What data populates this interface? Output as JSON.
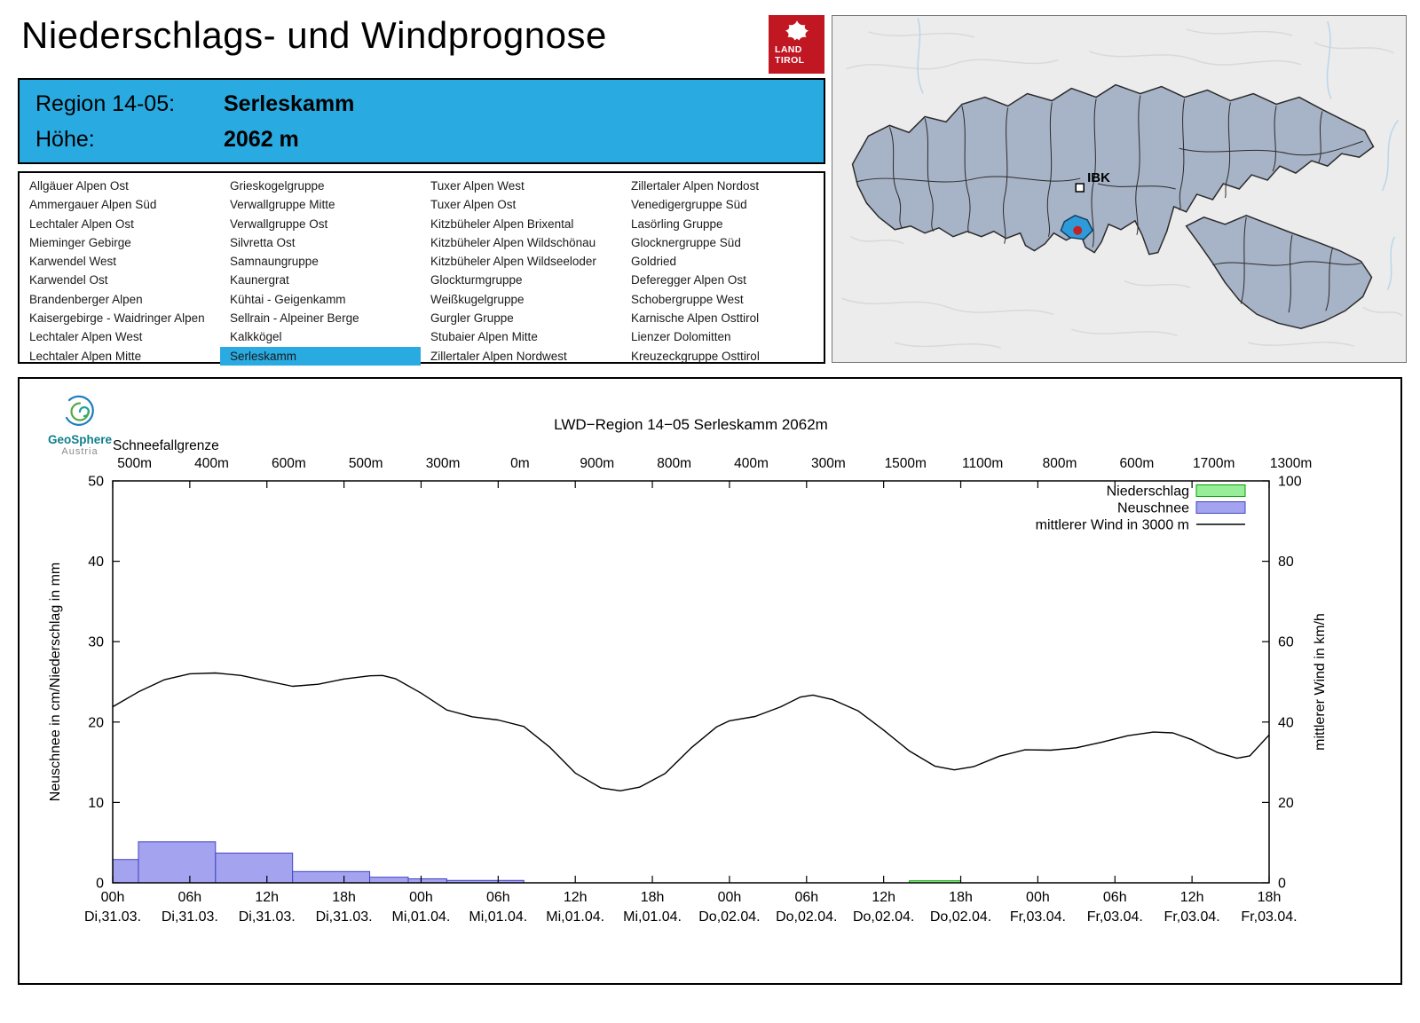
{
  "page": {
    "title": "Niederschlags- und Windprognose"
  },
  "logo": {
    "line1": "LAND",
    "line2": "TIROL"
  },
  "map": {
    "ibk_label": "IBK"
  },
  "region_info": {
    "region_label": "Region 14-05:",
    "region_value": "Serleskamm",
    "elevation_label": "Höhe:",
    "elevation_value": "2062 m"
  },
  "region_list": {
    "selected": "Serleskamm",
    "columns": [
      [
        "Allgäuer Alpen Ost",
        "Ammergauer Alpen Süd",
        "Lechtaler Alpen Ost",
        "Mieminger Gebirge",
        "Karwendel West",
        "Karwendel Ost",
        "Brandenberger Alpen",
        "Kaisergebirge - Waidringer Alpen",
        "Lechtaler Alpen West",
        "Lechtaler Alpen Mitte"
      ],
      [
        "Grieskogelgruppe",
        "Verwallgruppe Mitte",
        "Verwallgruppe Ost",
        "Silvretta Ost",
        "Samnaungruppe",
        "Kaunergrat",
        "Kühtai - Geigenkamm",
        "Sellrain - Alpeiner Berge",
        "Kalkkögel",
        "Serleskamm"
      ],
      [
        "Tuxer Alpen West",
        "Tuxer Alpen Ost",
        "Kitzbüheler Alpen Brixental",
        "Kitzbüheler Alpen Wildschönau",
        "Kitzbüheler Alpen Wildseeloder",
        "Glockturmgruppe",
        "Weißkugelgruppe",
        "Gurgler Gruppe",
        "Stubaier Alpen Mitte",
        "Zillertaler Alpen Nordwest"
      ],
      [
        "Zillertaler Alpen Nordost",
        "Venedigergruppe Süd",
        "Lasörling Gruppe",
        "Glocknergruppe Süd",
        "Goldried",
        "Deferegger Alpen Ost",
        "Schobergruppe West",
        "Karnische Alpen Osttirol",
        "Lienzer Dolomitten",
        "Kreuzeckgruppe Osttirol"
      ]
    ]
  },
  "geosphere": {
    "name": "GeoSphere",
    "country": "Austria"
  },
  "chart_data": {
    "type": "mixed",
    "title": "LWD−Region 14−05 Serleskamm 2062m",
    "snowline_label": "Schneefallgrenze",
    "snowline_values": [
      "500m",
      "400m",
      "600m",
      "500m",
      "300m",
      "0m",
      "900m",
      "800m",
      "400m",
      "300m",
      "1500m",
      "1100m",
      "800m",
      "600m",
      "1700m",
      "1300m"
    ],
    "x_range_hours": [
      0,
      90
    ],
    "x_ticks": [
      {
        "hour": 0,
        "time": "00h",
        "date": "Di,31.03."
      },
      {
        "hour": 6,
        "time": "06h",
        "date": "Di,31.03."
      },
      {
        "hour": 12,
        "time": "12h",
        "date": "Di,31.03."
      },
      {
        "hour": 18,
        "time": "18h",
        "date": "Di,31.03."
      },
      {
        "hour": 24,
        "time": "00h",
        "date": "Mi,01.04."
      },
      {
        "hour": 30,
        "time": "06h",
        "date": "Mi,01.04."
      },
      {
        "hour": 36,
        "time": "12h",
        "date": "Mi,01.04."
      },
      {
        "hour": 42,
        "time": "18h",
        "date": "Mi,01.04."
      },
      {
        "hour": 48,
        "time": "00h",
        "date": "Do,02.04."
      },
      {
        "hour": 54,
        "time": "06h",
        "date": "Do,02.04."
      },
      {
        "hour": 60,
        "time": "12h",
        "date": "Do,02.04."
      },
      {
        "hour": 66,
        "time": "18h",
        "date": "Do,02.04."
      },
      {
        "hour": 72,
        "time": "00h",
        "date": "Fr,03.04."
      },
      {
        "hour": 78,
        "time": "06h",
        "date": "Fr,03.04."
      },
      {
        "hour": 84,
        "time": "12h",
        "date": "Fr,03.04."
      },
      {
        "hour": 90,
        "time": "18h",
        "date": "Fr,03.04."
      }
    ],
    "left_axis": {
      "label": "Neuschnee in cm/Niederschlag in mm",
      "min": 0,
      "max": 50,
      "step": 10
    },
    "right_axis": {
      "label": "mittlerer Wind in km/h",
      "min": 0,
      "max": 100,
      "step": 20
    },
    "legend": [
      {
        "label": "Niederschlag",
        "swatch": "niederschlag"
      },
      {
        "label": "Neuschnee",
        "swatch": "neuschnee"
      },
      {
        "label": "mittlerer Wind in 3000 m",
        "swatch": "line"
      }
    ],
    "colors": {
      "accent_blue": "#29abe2",
      "neuschnee_fill": "#a3a3f0",
      "neuschnee_stroke": "#4444c4",
      "niederschlag_fill": "#98ee98",
      "niederschlag_stroke": "#00a000",
      "wind_line": "#000000"
    },
    "neuschnee_bars": [
      {
        "start": 0,
        "end": 2,
        "value": 2.9
      },
      {
        "start": 2,
        "end": 8,
        "value": 5.1
      },
      {
        "start": 8,
        "end": 14,
        "value": 3.7
      },
      {
        "start": 14,
        "end": 20,
        "value": 1.4
      },
      {
        "start": 20,
        "end": 23,
        "value": 0.7
      },
      {
        "start": 23,
        "end": 26,
        "value": 0.5
      },
      {
        "start": 26,
        "end": 32,
        "value": 0.3
      }
    ],
    "niederschlag_bars": [
      {
        "start": 62,
        "end": 66,
        "value": 0.25
      }
    ],
    "wind_series_kmh": [
      [
        0,
        43.8
      ],
      [
        2,
        47.5
      ],
      [
        4,
        50.5
      ],
      [
        6,
        52.0
      ],
      [
        8,
        52.2
      ],
      [
        10,
        51.6
      ],
      [
        12,
        50.2
      ],
      [
        14,
        48.9
      ],
      [
        16,
        49.4
      ],
      [
        18,
        50.7
      ],
      [
        20,
        51.5
      ],
      [
        21,
        51.6
      ],
      [
        22,
        50.8
      ],
      [
        24,
        47.2
      ],
      [
        26,
        43.0
      ],
      [
        28,
        41.3
      ],
      [
        30,
        40.5
      ],
      [
        32,
        38.9
      ],
      [
        34,
        33.8
      ],
      [
        36,
        27.3
      ],
      [
        38,
        23.6
      ],
      [
        39.5,
        22.9
      ],
      [
        41,
        23.8
      ],
      [
        43,
        27.2
      ],
      [
        45,
        33.5
      ],
      [
        47,
        38.8
      ],
      [
        48,
        40.3
      ],
      [
        50,
        41.4
      ],
      [
        52,
        43.8
      ],
      [
        53.5,
        46.2
      ],
      [
        54.5,
        46.7
      ],
      [
        56,
        45.6
      ],
      [
        58,
        42.8
      ],
      [
        60,
        38.0
      ],
      [
        62,
        32.8
      ],
      [
        64,
        29.0
      ],
      [
        65.5,
        28.1
      ],
      [
        67,
        28.9
      ],
      [
        69,
        31.5
      ],
      [
        71,
        33.1
      ],
      [
        73,
        33.0
      ],
      [
        75,
        33.6
      ],
      [
        77,
        35.0
      ],
      [
        79,
        36.6
      ],
      [
        81,
        37.5
      ],
      [
        82.5,
        37.3
      ],
      [
        84,
        35.6
      ],
      [
        86,
        32.4
      ],
      [
        87.5,
        31.0
      ],
      [
        88.5,
        31.6
      ],
      [
        90,
        36.8
      ]
    ]
  }
}
